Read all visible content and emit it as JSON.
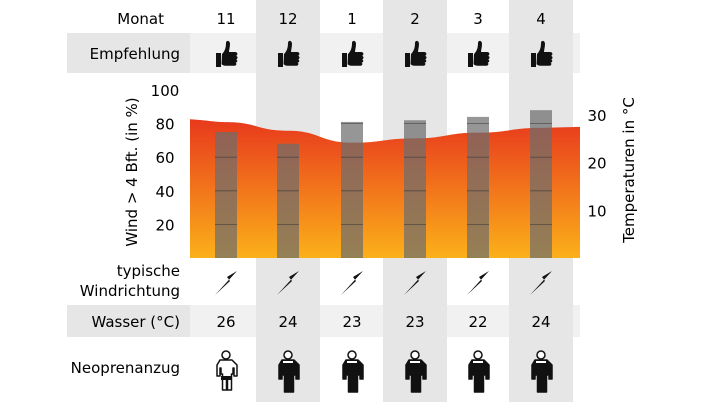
{
  "rows": {
    "month_label": "Monat",
    "recommendation_label": "Empfehlung",
    "wind_direction_label_line1": "typische",
    "wind_direction_label_line2": "Windrichtung",
    "water_label": "Wasser (°C)",
    "wetsuit_label": "Neoprenanzug"
  },
  "months": [
    "11",
    "12",
    "1",
    "2",
    "3",
    "4"
  ],
  "recommendation_icon": "thumbs-up-icon",
  "water_temps": [
    "26",
    "24",
    "23",
    "23",
    "22",
    "24"
  ],
  "wind_direction_icon": "arrow-northeast-icon",
  "wetsuit_icons": [
    "shorty-wetsuit-icon",
    "fullsuit-icon",
    "fullsuit-icon",
    "fullsuit-icon",
    "fullsuit-icon",
    "fullsuit-icon"
  ],
  "colors": {
    "band_gray": "#e6e6e6",
    "temp_top": "#e8391c",
    "temp_bottom": "#fbb01a",
    "bar": "#6e6e6e"
  },
  "chart_data": {
    "type": "bar",
    "categories": [
      "11",
      "12",
      "1",
      "2",
      "3",
      "4"
    ],
    "series": [
      {
        "values": [
          75,
          68,
          81,
          82,
          84,
          88
        ]
      },
      {
        "values": [
          28.5,
          26.7,
          24.2,
          25.1,
          26.3,
          27.3
        ]
      }
    ],
    "ylabel": "Wind > 4 Bft. (in %)",
    "ylim": [
      0,
      100
    ],
    "yticks": [
      "20",
      "40",
      "60",
      "80",
      "100"
    ],
    "y2label": "Temperaturen in °C",
    "y2lim": [
      0,
      30
    ],
    "y2ticks": [
      "10",
      "20",
      "30"
    ],
    "grid": false
  }
}
